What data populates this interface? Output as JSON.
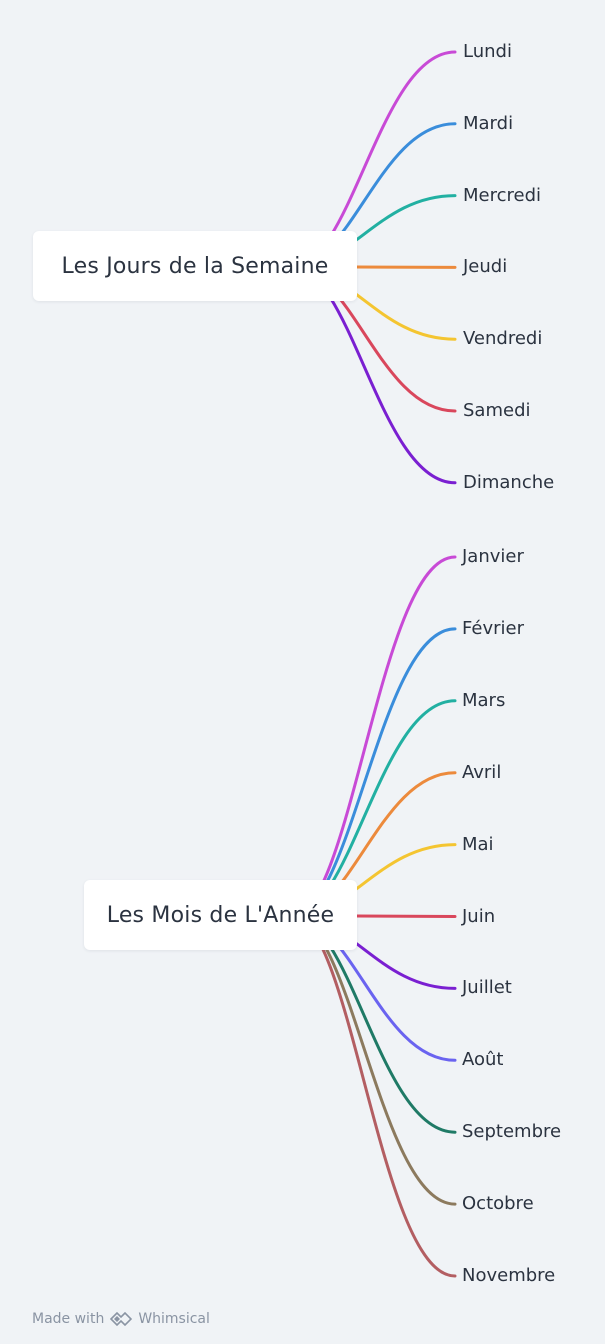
{
  "maps": [
    {
      "root": "Les Jours de la Semaine",
      "branches": [
        {
          "label": "Lundi",
          "color": "#c84ad6"
        },
        {
          "label": "Mardi",
          "color": "#3a8ddb"
        },
        {
          "label": "Mercredi",
          "color": "#22b0a2"
        },
        {
          "label": "Jeudi",
          "color": "#ec8a3c"
        },
        {
          "label": "Vendredi",
          "color": "#f4c531"
        },
        {
          "label": "Samedi",
          "color": "#d9475c"
        },
        {
          "label": "Dimanche",
          "color": "#7a1fd1"
        }
      ]
    },
    {
      "root": "Les Mois de L'Année",
      "branches": [
        {
          "label": "Janvier",
          "color": "#c84ad6"
        },
        {
          "label": "Février",
          "color": "#3a8ddb"
        },
        {
          "label": "Mars",
          "color": "#22b0a2"
        },
        {
          "label": "Avril",
          "color": "#ec8a3c"
        },
        {
          "label": "Mai",
          "color": "#f4c531"
        },
        {
          "label": "Juin",
          "color": "#d9475c"
        },
        {
          "label": "Juillet",
          "color": "#7a1fd1"
        },
        {
          "label": "Août",
          "color": "#6a63f0"
        },
        {
          "label": "Septembre",
          "color": "#1f7a66"
        },
        {
          "label": "Octobre",
          "color": "#8c7a5e"
        },
        {
          "label": "Novembre",
          "color": "#b35e62"
        }
      ]
    }
  ],
  "footer": {
    "made_with": "Made with",
    "brand": "Whimsical"
  }
}
